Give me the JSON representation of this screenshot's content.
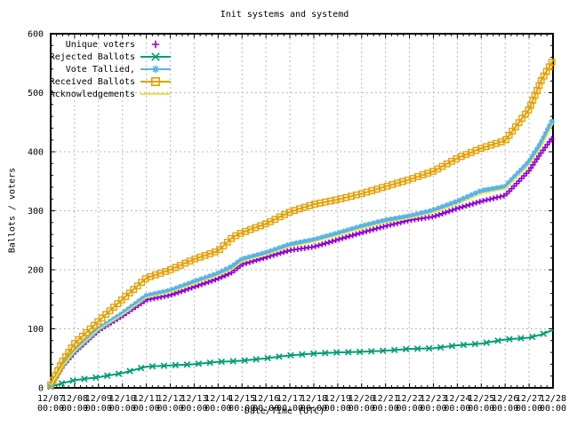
{
  "chart_data": {
    "type": "line",
    "title": "Init systems and systemd",
    "xlabel": "Date/Time (UTC)",
    "ylabel": "Ballots / voters",
    "ylim": [
      0,
      600
    ],
    "grid": true,
    "legend_position": "top-left",
    "background": "#ffffff",
    "grid_color": "#b8b8b8",
    "axis_color": "#000000",
    "xtick_time": "00:00",
    "x_dates": [
      "12/07",
      "12/08",
      "12/09",
      "12/10",
      "12/11",
      "12/12",
      "12/13",
      "12/14",
      "12/15",
      "12/16",
      "12/17",
      "12/18",
      "12/19",
      "12/20",
      "12/21",
      "12/22",
      "12/23",
      "12/24",
      "12/25",
      "12/26",
      "12/27",
      "12/28"
    ],
    "x": [
      0,
      0.5,
      1,
      2,
      3,
      4,
      5,
      6,
      7,
      7.6,
      8,
      9,
      10,
      11,
      12,
      13,
      14,
      15,
      16,
      17,
      18,
      19,
      20,
      20.5,
      21
    ],
    "series": [
      {
        "name": "Unique voters",
        "color": "#9400d3",
        "marker": "plus",
        "line": false,
        "marker_spacing": 4,
        "values": [
          3,
          36,
          60,
          97,
          122,
          149,
          157,
          171,
          185,
          196,
          209,
          221,
          233,
          239,
          251,
          263,
          274,
          284,
          290,
          304,
          316,
          326,
          368,
          398,
          425
        ]
      },
      {
        "name": "Rejected Ballots",
        "color": "#009e73",
        "marker": "cross",
        "line": true,
        "marker_spacing": 13,
        "values": [
          2,
          8,
          13,
          18,
          25,
          36,
          38,
          40,
          44,
          45,
          46,
          50,
          55,
          58,
          60,
          61,
          63,
          66,
          67,
          72,
          75,
          82,
          85,
          90,
          98
        ]
      },
      {
        "name": "Vote Tallied,",
        "color": "#56b4e9",
        "marker": "star",
        "line": true,
        "marker_spacing": 5,
        "values": [
          3,
          38,
          63,
          100,
          126,
          156,
          165,
          180,
          194,
          206,
          218,
          229,
          243,
          251,
          262,
          274,
          284,
          291,
          301,
          316,
          334,
          341,
          383,
          415,
          455
        ]
      },
      {
        "name": "Received Ballots",
        "color": "#e69f00",
        "marker": "square",
        "line": true,
        "marker_spacing": 6,
        "values": [
          5,
          45,
          75,
          113,
          150,
          186,
          200,
          218,
          232,
          255,
          263,
          278,
          298,
          311,
          319,
          329,
          341,
          353,
          367,
          389,
          406,
          419,
          472,
          520,
          555
        ]
      },
      {
        "name": "Acknowledgements",
        "color": "#f0e442",
        "marker": "none",
        "line": true,
        "marker_spacing": 0,
        "values": [
          4,
          37,
          62,
          99,
          124,
          153,
          162,
          176,
          190,
          201,
          214,
          225,
          239,
          247,
          258,
          270,
          280,
          287,
          297,
          311,
          329,
          337,
          378,
          408,
          448
        ]
      }
    ],
    "yticks": [
      0,
      100,
      200,
      300,
      400,
      500,
      600
    ]
  }
}
